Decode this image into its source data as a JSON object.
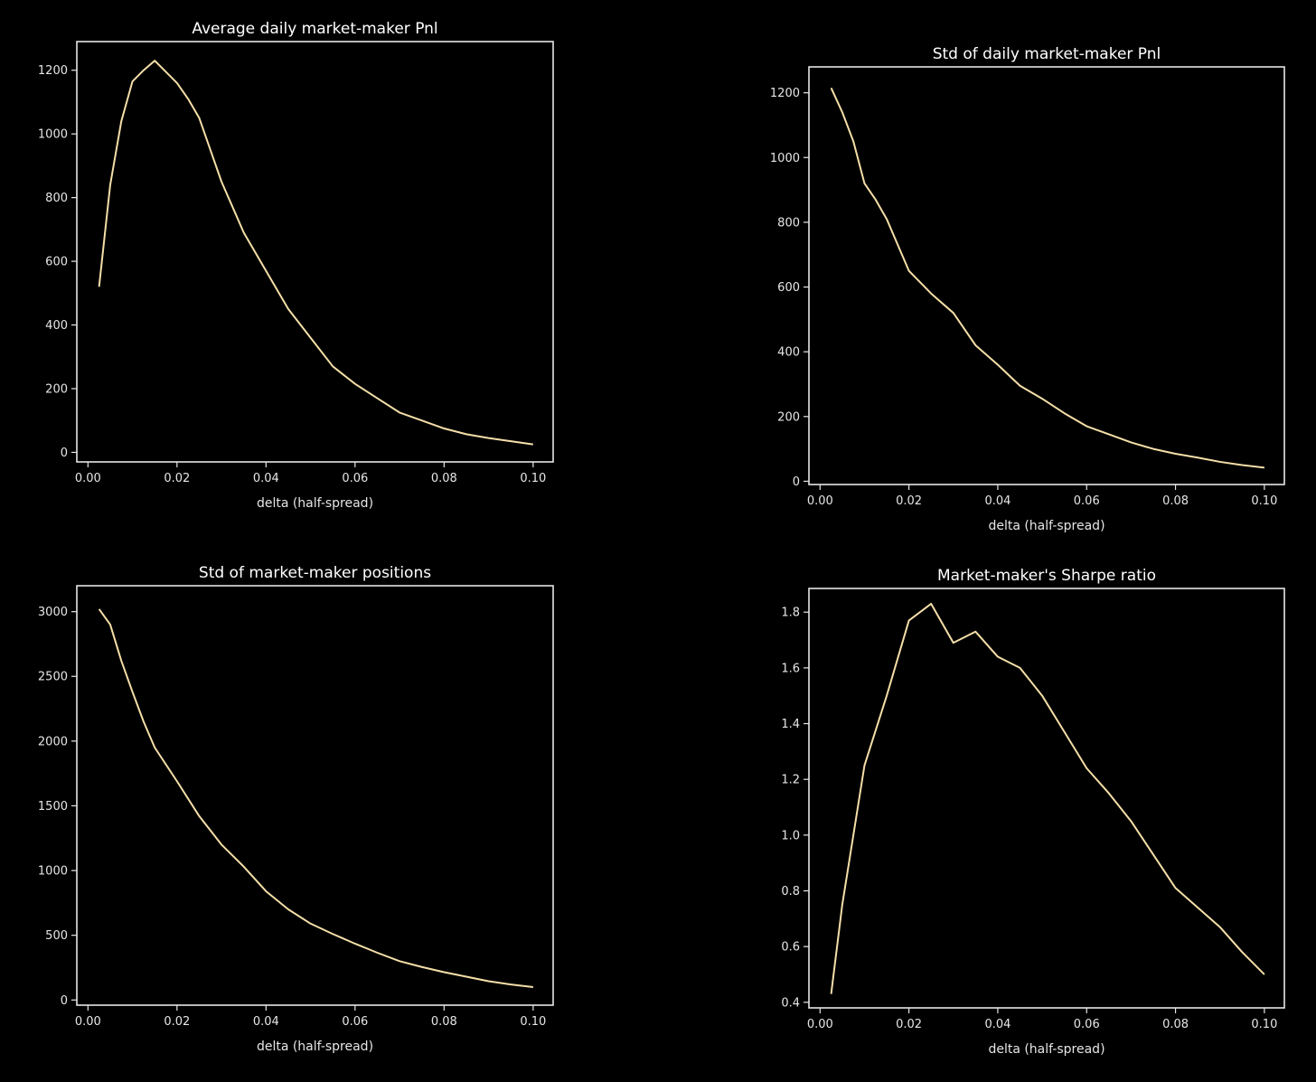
{
  "colors": {
    "background": "#000000",
    "axes": "#e6e6e6",
    "line": "#f5dfa8"
  },
  "chart_data": [
    {
      "type": "line",
      "title": "Average daily market-maker Pnl",
      "xlabel": "delta (half-spread)",
      "ylabel": "",
      "xlim": [
        -0.0025,
        0.1045
      ],
      "ylim": [
        -30,
        1290
      ],
      "xticks": [
        0.0,
        0.02,
        0.04,
        0.06,
        0.08,
        0.1
      ],
      "xtick_labels": [
        "0.00",
        "0.02",
        "0.04",
        "0.06",
        "0.08",
        "0.10"
      ],
      "yticks": [
        0,
        200,
        400,
        600,
        800,
        1000,
        1200
      ],
      "ytick_labels": [
        "0",
        "200",
        "400",
        "600",
        "800",
        "1000",
        "1200"
      ],
      "grid": false,
      "series": [
        {
          "x": [
            0.0025,
            0.005,
            0.0075,
            0.01,
            0.0125,
            0.015,
            0.0175,
            0.02,
            0.0225,
            0.025,
            0.0275,
            0.03,
            0.035,
            0.04,
            0.045,
            0.05,
            0.055,
            0.06,
            0.065,
            0.07,
            0.075,
            0.08,
            0.085,
            0.09,
            0.095,
            0.1
          ],
          "y": [
            520,
            840,
            1040,
            1165,
            1200,
            1230,
            1195,
            1160,
            1110,
            1050,
            950,
            850,
            690,
            570,
            450,
            360,
            270,
            215,
            170,
            125,
            100,
            75,
            57,
            45,
            35,
            25
          ]
        }
      ]
    },
    {
      "type": "line",
      "title": "Std of daily market-maker Pnl",
      "xlabel": "delta (half-spread)",
      "ylabel": "",
      "xlim": [
        -0.0025,
        0.1045
      ],
      "ylim": [
        -10,
        1280
      ],
      "xticks": [
        0.0,
        0.02,
        0.04,
        0.06,
        0.08,
        0.1
      ],
      "xtick_labels": [
        "0.00",
        "0.02",
        "0.04",
        "0.06",
        "0.08",
        "0.10"
      ],
      "yticks": [
        0,
        200,
        400,
        600,
        800,
        1000,
        1200
      ],
      "ytick_labels": [
        "0",
        "200",
        "400",
        "600",
        "800",
        "1000",
        "1200"
      ],
      "grid": false,
      "series": [
        {
          "x": [
            0.0025,
            0.005,
            0.0075,
            0.01,
            0.0125,
            0.015,
            0.0175,
            0.02,
            0.025,
            0.03,
            0.035,
            0.04,
            0.045,
            0.05,
            0.055,
            0.06,
            0.065,
            0.07,
            0.075,
            0.08,
            0.085,
            0.09,
            0.095,
            0.1
          ],
          "y": [
            1215,
            1140,
            1050,
            920,
            870,
            810,
            730,
            650,
            580,
            520,
            420,
            360,
            295,
            255,
            210,
            170,
            145,
            120,
            100,
            85,
            73,
            60,
            50,
            42
          ]
        }
      ]
    },
    {
      "type": "line",
      "title": "Std of market-maker positions",
      "xlabel": "delta (half-spread)",
      "ylabel": "",
      "xlim": [
        -0.0025,
        0.1045
      ],
      "ylim": [
        -40,
        3200
      ],
      "xticks": [
        0.0,
        0.02,
        0.04,
        0.06,
        0.08,
        0.1
      ],
      "xtick_labels": [
        "0.00",
        "0.02",
        "0.04",
        "0.06",
        "0.08",
        "0.10"
      ],
      "yticks": [
        0,
        500,
        1000,
        1500,
        2000,
        2500,
        3000
      ],
      "ytick_labels": [
        "0",
        "500",
        "1000",
        "1500",
        "2000",
        "2500",
        "3000"
      ],
      "grid": false,
      "series": [
        {
          "x": [
            0.0025,
            0.005,
            0.0075,
            0.01,
            0.0125,
            0.015,
            0.0175,
            0.02,
            0.025,
            0.03,
            0.035,
            0.04,
            0.045,
            0.05,
            0.055,
            0.06,
            0.065,
            0.07,
            0.075,
            0.08,
            0.085,
            0.09,
            0.095,
            0.1
          ],
          "y": [
            3020,
            2900,
            2620,
            2380,
            2150,
            1950,
            1820,
            1690,
            1420,
            1200,
            1030,
            840,
            700,
            590,
            510,
            435,
            365,
            300,
            255,
            215,
            180,
            145,
            120,
            100
          ]
        }
      ]
    },
    {
      "type": "line",
      "title": "Market-maker's Sharpe ratio",
      "xlabel": "delta (half-spread)",
      "ylabel": "",
      "xlim": [
        -0.0025,
        0.1045
      ],
      "ylim": [
        0.38,
        1.885
      ],
      "xticks": [
        0.0,
        0.02,
        0.04,
        0.06,
        0.08,
        0.1
      ],
      "xtick_labels": [
        "0.00",
        "0.02",
        "0.04",
        "0.06",
        "0.08",
        "0.10"
      ],
      "yticks": [
        0.4,
        0.6,
        0.8,
        1.0,
        1.2,
        1.4,
        1.6,
        1.8
      ],
      "ytick_labels": [
        "0.4",
        "0.6",
        "0.8",
        "1.0",
        "1.2",
        "1.4",
        "1.6",
        "1.8"
      ],
      "grid": false,
      "series": [
        {
          "x": [
            0.0025,
            0.005,
            0.0075,
            0.01,
            0.015,
            0.02,
            0.025,
            0.03,
            0.035,
            0.04,
            0.045,
            0.05,
            0.055,
            0.06,
            0.065,
            0.07,
            0.075,
            0.08,
            0.085,
            0.09,
            0.095,
            0.1
          ],
          "y": [
            0.43,
            0.75,
            1.0,
            1.25,
            1.5,
            1.77,
            1.83,
            1.69,
            1.73,
            1.64,
            1.6,
            1.5,
            1.37,
            1.24,
            1.15,
            1.05,
            0.93,
            0.81,
            0.74,
            0.67,
            0.58,
            0.5
          ]
        }
      ]
    }
  ]
}
